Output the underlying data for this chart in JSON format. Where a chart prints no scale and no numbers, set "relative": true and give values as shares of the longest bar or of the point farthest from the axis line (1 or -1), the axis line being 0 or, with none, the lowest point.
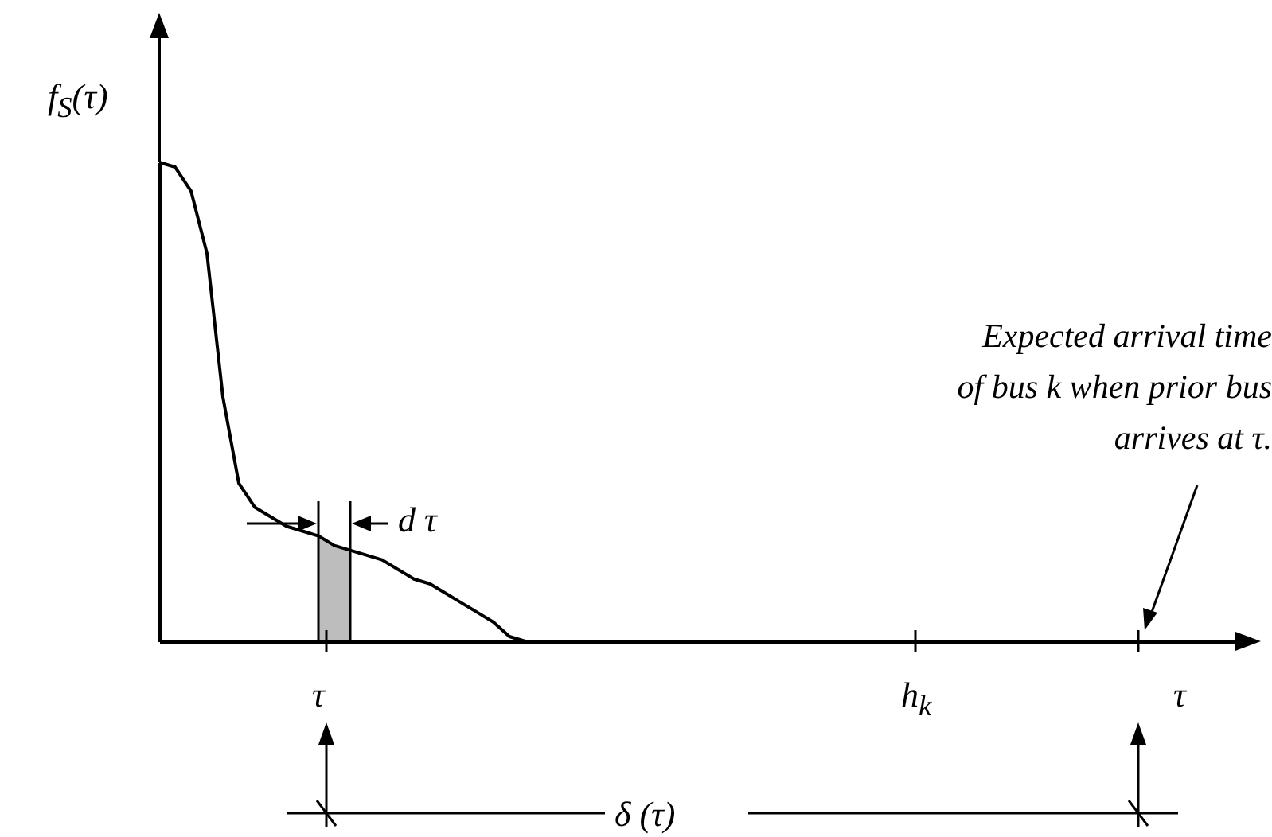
{
  "chart_data": {
    "type": "line",
    "relative": true,
    "ylabel": "f$_{S}$(τ)",
    "xlabel": "τ",
    "categories": [
      null,
      null,
      null,
      null,
      null,
      null,
      null,
      null,
      null,
      null,
      null,
      null,
      null,
      null,
      null,
      null,
      null,
      null,
      null,
      null,
      null,
      null,
      null,
      null,
      null,
      null,
      null,
      null,
      null,
      null,
      null,
      null,
      null,
      null,
      null,
      null,
      null,
      null,
      null,
      null,
      null,
      null,
      null,
      null,
      null,
      null,
      null,
      null,
      null,
      null,
      null,
      null,
      null,
      null,
      null,
      null,
      null,
      null,
      null,
      null,
      null,
      null,
      null,
      null,
      null,
      null,
      null,
      null,
      null
    ],
    "series": [
      {
        "color": "#000000",
        "values": [
          1.0,
          0.99,
          0.94,
          0.81,
          0.51,
          0.33,
          0.28,
          0.26,
          0.24,
          0.23,
          0.22,
          0.2,
          0.19,
          0.18,
          0.17,
          0.15,
          0.13,
          0.12,
          0.1,
          0.08,
          0.06,
          0.04,
          0.01,
          0,
          null,
          null,
          null,
          null,
          null,
          null,
          null,
          null,
          null,
          null,
          null,
          null,
          null,
          null,
          null,
          null,
          null,
          null,
          null,
          null,
          null,
          null,
          null,
          null,
          null,
          null,
          null,
          null,
          null,
          null,
          null,
          null,
          null,
          null,
          null,
          null,
          null,
          null,
          null,
          null,
          null,
          null,
          null,
          null,
          null
        ]
      },
      {
        "type": "area",
        "color": "#bdbdbd",
        "values": [
          null,
          null,
          null,
          null,
          null,
          null,
          null,
          null,
          null,
          null,
          0.22,
          0.2,
          0.19,
          null,
          null,
          null,
          null,
          null,
          null,
          null,
          null,
          null,
          null,
          null,
          null,
          null,
          null,
          null,
          null,
          null,
          null,
          null,
          null,
          null,
          null,
          null,
          null,
          null,
          null,
          null,
          null,
          null,
          null,
          null,
          null,
          null,
          null,
          null,
          null,
          null,
          null,
          null,
          null,
          null,
          null,
          null,
          null,
          null,
          null,
          null,
          null,
          null,
          null,
          null,
          null,
          null,
          null,
          null,
          null
        ]
      }
    ],
    "annotations": [
      "τ",
      "h$_{k}$",
      "d τ",
      "δ (τ)",
      "Expected arrival time of bus k when prior bus arrives at τ."
    ]
  }
}
